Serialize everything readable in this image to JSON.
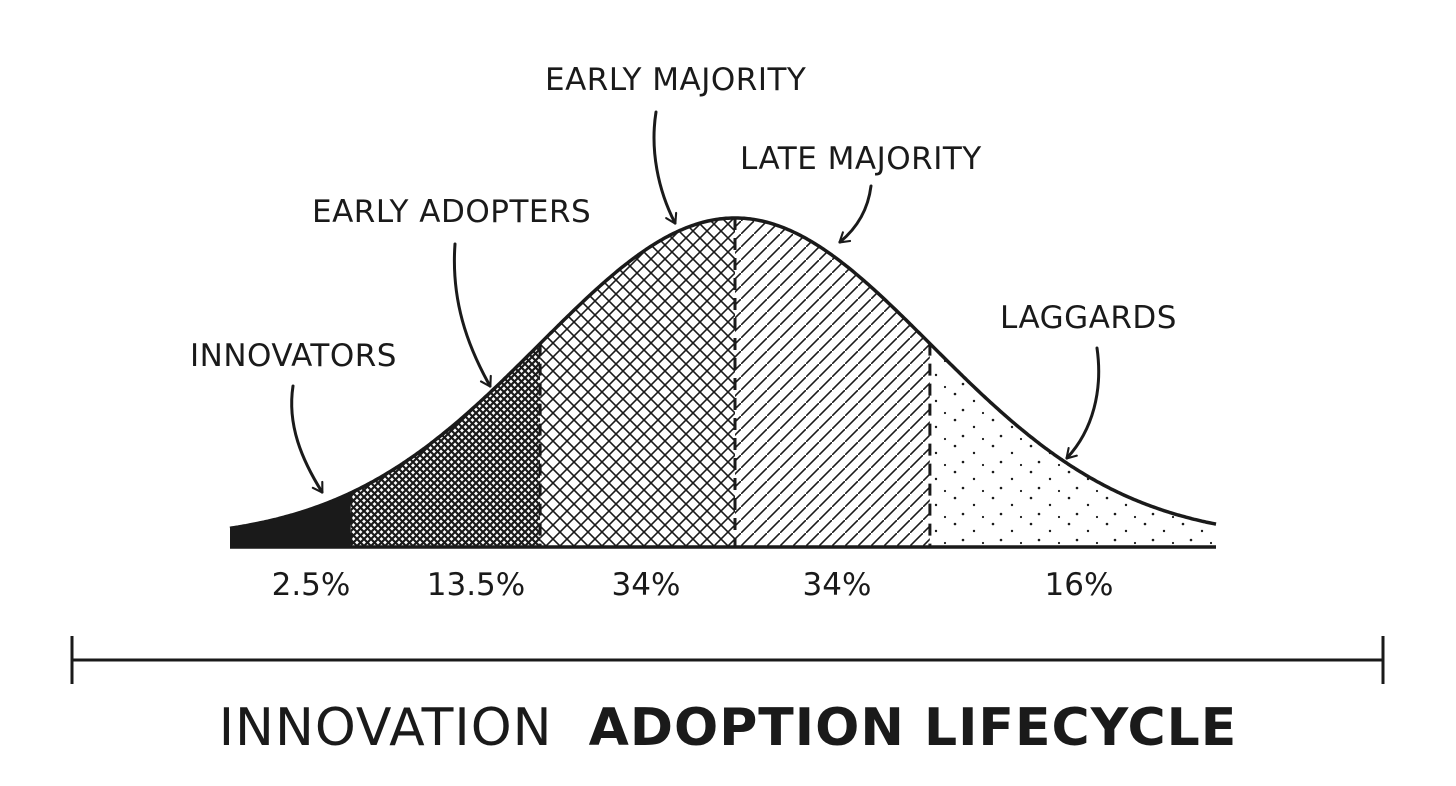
{
  "chart_data": {
    "type": "area",
    "title": {
      "part1": "INNOVATION",
      "part2": "ADOPTION LIFECYCLE"
    },
    "distribution": "normal",
    "segments": [
      {
        "name": "INNOVATORS",
        "percent_label": "2.5%",
        "value": 2.5,
        "fill": "solid"
      },
      {
        "name": "EARLY ADOPTERS",
        "percent_label": "13.5%",
        "value": 13.5,
        "fill": "dense-crosshatch"
      },
      {
        "name": "EARLY MAJORITY",
        "percent_label": "34%",
        "value": 34,
        "fill": "crosshatch"
      },
      {
        "name": "LATE MAJORITY",
        "percent_label": "34%",
        "value": 34,
        "fill": "hatch"
      },
      {
        "name": "LAGGARDS",
        "percent_label": "16%",
        "value": 16,
        "fill": "stipple"
      }
    ]
  },
  "colors": {
    "ink": "#1a1a1a",
    "background": "#ffffff"
  }
}
